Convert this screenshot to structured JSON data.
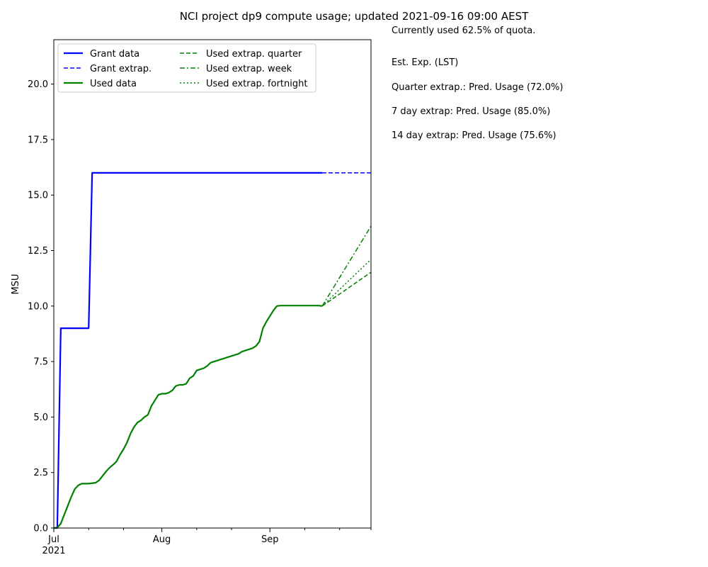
{
  "chart_data": {
    "type": "line",
    "title": "NCI project dp9 compute usage; updated 2021-09-16 09:00 AEST",
    "xlabel": "",
    "ylabel": "MSU",
    "xlim": [
      "2021-07-01",
      "2021-09-30"
    ],
    "ylim": [
      0,
      22
    ],
    "x_ticks": [
      {
        "date": "2021-07-01",
        "label": "Jul",
        "sublabel": "2021"
      },
      {
        "date": "2021-08-01",
        "label": "Aug"
      },
      {
        "date": "2021-09-01",
        "label": "Sep"
      }
    ],
    "x_minor_tick_dates": [
      "2021-07-11",
      "2021-07-21",
      "2021-08-11",
      "2021-08-21",
      "2021-09-11",
      "2021-09-21",
      "2021-09-30"
    ],
    "y_ticks": [
      0.0,
      2.5,
      5.0,
      7.5,
      10.0,
      12.5,
      15.0,
      17.5,
      20.0
    ],
    "grid": false,
    "legend": {
      "placement": "top-left",
      "columns": 2
    },
    "series": [
      {
        "name": "Grant data",
        "color": "#0000ff",
        "style": "solid",
        "width": 2.2,
        "x": [
          "2021-07-01",
          "2021-07-02",
          "2021-07-03",
          "2021-07-11",
          "2021-07-12",
          "2021-09-16"
        ],
        "y": [
          0,
          0,
          9.0,
          9.0,
          16.0,
          16.0
        ]
      },
      {
        "name": "Grant extrap.",
        "color": "#0000ff",
        "style": "dashed",
        "width": 1.5,
        "x": [
          "2021-09-16",
          "2021-09-30"
        ],
        "y": [
          16.0,
          16.0
        ]
      },
      {
        "name": "Used data",
        "color": "#008000",
        "style": "solid",
        "width": 2.2,
        "x": [
          "2021-07-01",
          "2021-07-02",
          "2021-07-03",
          "2021-07-04",
          "2021-07-05",
          "2021-07-06",
          "2021-07-07",
          "2021-07-08",
          "2021-07-09",
          "2021-07-10",
          "2021-07-11",
          "2021-07-12",
          "2021-07-13",
          "2021-07-14",
          "2021-07-15",
          "2021-07-16",
          "2021-07-17",
          "2021-07-18",
          "2021-07-19",
          "2021-07-20",
          "2021-07-21",
          "2021-07-22",
          "2021-07-23",
          "2021-07-24",
          "2021-07-25",
          "2021-07-26",
          "2021-07-27",
          "2021-07-28",
          "2021-07-29",
          "2021-07-30",
          "2021-07-31",
          "2021-08-01",
          "2021-08-02",
          "2021-08-03",
          "2021-08-04",
          "2021-08-05",
          "2021-08-06",
          "2021-08-07",
          "2021-08-08",
          "2021-08-09",
          "2021-08-10",
          "2021-08-11",
          "2021-08-12",
          "2021-08-13",
          "2021-08-14",
          "2021-08-15",
          "2021-08-16",
          "2021-08-17",
          "2021-08-18",
          "2021-08-19",
          "2021-08-20",
          "2021-08-21",
          "2021-08-22",
          "2021-08-23",
          "2021-08-24",
          "2021-08-25",
          "2021-08-26",
          "2021-08-27",
          "2021-08-28",
          "2021-08-29",
          "2021-08-30",
          "2021-08-31",
          "2021-09-01",
          "2021-09-02",
          "2021-09-03",
          "2021-09-04",
          "2021-09-05",
          "2021-09-06",
          "2021-09-07",
          "2021-09-08",
          "2021-09-09",
          "2021-09-10",
          "2021-09-11",
          "2021-09-12",
          "2021-09-13",
          "2021-09-14",
          "2021-09-15",
          "2021-09-16"
        ],
        "y": [
          0.0,
          0.02,
          0.2,
          0.6,
          1.0,
          1.4,
          1.75,
          1.92,
          2.0,
          2.0,
          2.0,
          2.02,
          2.04,
          2.15,
          2.35,
          2.55,
          2.72,
          2.85,
          3.0,
          3.3,
          3.55,
          3.85,
          4.25,
          4.55,
          4.75,
          4.85,
          5.0,
          5.1,
          5.5,
          5.75,
          6.0,
          6.05,
          6.05,
          6.1,
          6.2,
          6.4,
          6.45,
          6.45,
          6.5,
          6.75,
          6.85,
          7.1,
          7.15,
          7.2,
          7.3,
          7.45,
          7.5,
          7.55,
          7.6,
          7.65,
          7.7,
          7.75,
          7.8,
          7.85,
          7.95,
          8.0,
          8.05,
          8.1,
          8.2,
          8.4,
          9.0,
          9.3,
          9.55,
          9.8,
          10.0,
          10.02,
          10.02,
          10.02,
          10.02,
          10.02,
          10.02,
          10.02,
          10.02,
          10.02,
          10.02,
          10.02,
          10.02,
          10.0
        ]
      },
      {
        "name": "Used extrap. quarter",
        "color": "#008000",
        "style": "dashed",
        "width": 1.5,
        "x": [
          "2021-09-16",
          "2021-09-30"
        ],
        "y": [
          10.0,
          11.52
        ]
      },
      {
        "name": "Used extrap. week",
        "color": "#008000",
        "style": "dashdot",
        "width": 1.5,
        "x": [
          "2021-09-16",
          "2021-09-30"
        ],
        "y": [
          10.0,
          13.6
        ]
      },
      {
        "name": "Used extrap. fortnight",
        "color": "#008000",
        "style": "dotted",
        "width": 1.5,
        "x": [
          "2021-09-16",
          "2021-09-30"
        ],
        "y": [
          10.0,
          12.1
        ]
      }
    ],
    "annotations": [
      "Currently used 62.5% of quota.",
      "Est. Exp. (LST)",
      "Quarter extrap.: Pred. Usage (72.0%)",
      "7 day extrap: Pred. Usage (85.0%)",
      "14 day extrap: Pred. Usage (75.6%)"
    ]
  }
}
